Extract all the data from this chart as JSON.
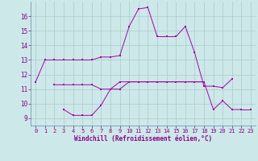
{
  "xlabel": "Windchill (Refroidissement éolien,°C)",
  "x": [
    0,
    1,
    2,
    3,
    4,
    5,
    6,
    7,
    8,
    9,
    10,
    11,
    12,
    13,
    14,
    15,
    16,
    17,
    18,
    19,
    20,
    21,
    22,
    23
  ],
  "line1": [
    11.5,
    13.0,
    13.0,
    13.0,
    13.0,
    13.0,
    13.0,
    13.2,
    13.2,
    13.3,
    15.3,
    16.5,
    16.6,
    14.6,
    14.6,
    14.6,
    15.3,
    13.5,
    11.2,
    11.2,
    11.1,
    11.7,
    null,
    null
  ],
  "line2": [
    null,
    null,
    11.3,
    11.3,
    11.3,
    11.3,
    11.3,
    11.0,
    11.0,
    11.5,
    11.5,
    11.5,
    11.5,
    11.5,
    11.5,
    11.5,
    11.5,
    11.5,
    11.5,
    null,
    null,
    null,
    null,
    null
  ],
  "line3": [
    null,
    null,
    null,
    9.6,
    9.2,
    9.2,
    9.2,
    9.9,
    11.0,
    11.0,
    11.5,
    11.5,
    11.5,
    11.5,
    11.5,
    11.5,
    11.5,
    11.5,
    11.5,
    9.6,
    10.2,
    9.6,
    9.6,
    null
  ],
  "line4": [
    null,
    null,
    null,
    null,
    null,
    null,
    null,
    null,
    null,
    null,
    null,
    null,
    null,
    null,
    null,
    null,
    null,
    null,
    null,
    9.6,
    null,
    null,
    9.6,
    9.6
  ],
  "bg_color": "#cce8e8",
  "grid_color": "#aacccc",
  "line_color": "#aa00aa",
  "spine_color": "#6688aa",
  "ylim": [
    8.5,
    17.0
  ],
  "yticks": [
    9,
    10,
    11,
    12,
    13,
    14,
    15,
    16
  ],
  "xlim": [
    -0.5,
    23.5
  ],
  "xticks": [
    0,
    1,
    2,
    3,
    4,
    5,
    6,
    7,
    8,
    9,
    10,
    11,
    12,
    13,
    14,
    15,
    16,
    17,
    18,
    19,
    20,
    21,
    22,
    23
  ],
  "tick_color": "#880088",
  "label_color": "#880088"
}
